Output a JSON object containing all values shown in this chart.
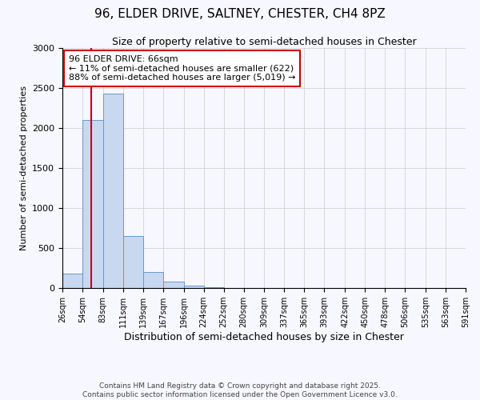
{
  "title1": "96, ELDER DRIVE, SALTNEY, CHESTER, CH4 8PZ",
  "title2": "Size of property relative to semi-detached houses in Chester",
  "xlabel": "Distribution of semi-detached houses by size in Chester",
  "ylabel": "Number of semi-detached properties",
  "bar_color": "#c8d8f0",
  "bar_edge_color": "#6699cc",
  "bar_heights": [
    180,
    2100,
    2430,
    650,
    200,
    80,
    30,
    15,
    5,
    0,
    0,
    0,
    0,
    0,
    0,
    0,
    0,
    0,
    0
  ],
  "bin_edges": [
    26,
    54,
    83,
    111,
    139,
    167,
    196,
    224,
    252,
    280,
    309,
    337,
    365,
    393,
    422,
    450,
    478,
    506,
    535,
    563
  ],
  "xtick_labels": [
    "26sqm",
    "54sqm",
    "83sqm",
    "111sqm",
    "139sqm",
    "167sqm",
    "196sqm",
    "224sqm",
    "252sqm",
    "280sqm",
    "309sqm",
    "337sqm",
    "365sqm",
    "393sqm",
    "422sqm",
    "450sqm",
    "478sqm",
    "506sqm",
    "535sqm",
    "563sqm",
    "591sqm"
  ],
  "ylim": [
    0,
    3000
  ],
  "yticks": [
    0,
    500,
    1000,
    1500,
    2000,
    2500,
    3000
  ],
  "property_size": 66,
  "vline_color": "#cc0000",
  "annotation_text": "96 ELDER DRIVE: 66sqm\n← 11% of semi-detached houses are smaller (622)\n88% of semi-detached houses are larger (5,019) →",
  "annotation_box_color": "#ffffff",
  "annotation_box_edge": "#cc0000",
  "footer_text": "Contains HM Land Registry data © Crown copyright and database right 2025.\nContains public sector information licensed under the Open Government Licence v3.0.",
  "background_color": "#f7f7ff",
  "plot_background": "#f7f7ff"
}
